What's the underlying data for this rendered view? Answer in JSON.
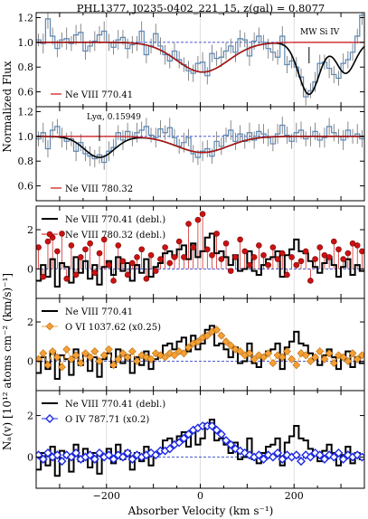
{
  "figure": {
    "title": "PHL1377, J0235-0402_221_15, z(gal) = 0.8077",
    "xlabel": "Absorber Velocity (km s⁻¹)",
    "ylabel_top": "Normalized Flux",
    "ylabel_bottom": "Nₐ(v) [10¹² atoms cm⁻² (km/s)⁻¹]"
  },
  "colors": {
    "flux_step": "#5b87b3",
    "error_bar": "#6e6e6e",
    "model_black": "#000000",
    "model_red": "#cc1111",
    "continuum": "#3344cc",
    "ne8_770": "#000000",
    "ne8_780": "#cc1111",
    "o6": "#f5a035",
    "o4": "#1d2ae0"
  },
  "chart_data": [
    {
      "type": "line",
      "panel": "flux-ne8-770",
      "legend": [
        "Ne VIII 770.41"
      ],
      "annotations": [
        "MW Si IV"
      ],
      "xlim": [
        -350,
        350
      ],
      "ylim": [
        0.48,
        1.24
      ],
      "yticks": [
        "0.6",
        "0.8",
        "1.0",
        "1.2"
      ],
      "continuum": 1.0,
      "x": [
        -345,
        -335,
        -325,
        -315,
        -305,
        -295,
        -285,
        -275,
        -265,
        -255,
        -245,
        -235,
        -225,
        -215,
        -205,
        -195,
        -185,
        -175,
        -165,
        -155,
        -145,
        -135,
        -125,
        -115,
        -105,
        -95,
        -85,
        -75,
        -65,
        -55,
        -45,
        -35,
        -25,
        -15,
        -5,
        5,
        15,
        25,
        35,
        45,
        55,
        65,
        75,
        85,
        95,
        105,
        115,
        125,
        135,
        145,
        155,
        165,
        175,
        185,
        195,
        205,
        215,
        225,
        235,
        245,
        255,
        265,
        275,
        285,
        295,
        305,
        315,
        325,
        335,
        345
      ],
      "flux": [
        1.02,
        0.99,
        1.19,
        1.05,
        0.95,
        1.02,
        1.03,
        0.99,
        1.06,
        1.08,
        0.93,
        0.97,
        1.01,
        1.06,
        1.09,
        1.0,
        0.96,
        1.02,
        1.04,
        0.95,
        0.98,
        0.99,
        1.09,
        0.9,
        0.97,
        1.07,
        0.97,
        0.9,
        0.85,
        0.93,
        0.86,
        0.82,
        0.77,
        0.75,
        0.83,
        0.84,
        0.73,
        0.91,
        0.87,
        0.88,
        0.93,
        0.97,
        0.92,
        1.03,
        1.02,
        0.89,
        1.01,
        1.05,
        1.0,
        0.95,
        0.92,
        0.88,
        1.05,
        0.82,
        0.85,
        0.8,
        0.72,
        0.56,
        0.61,
        0.68,
        0.83,
        0.84,
        0.79,
        0.74,
        0.71,
        0.83,
        0.86,
        0.92,
        1.05,
        1.22
      ],
      "error": [
        0.05,
        0.08,
        0.08,
        0.07,
        0.07,
        0.06,
        0.09,
        0.06,
        0.08,
        0.07,
        0.07,
        0.05,
        0.08,
        0.07,
        0.08,
        0.07,
        0.06,
        0.08,
        0.06,
        0.08,
        0.07,
        0.06,
        0.08,
        0.07,
        0.06,
        0.08,
        0.07,
        0.08,
        0.06,
        0.07,
        0.07,
        0.06,
        0.08,
        0.07,
        0.06,
        0.08,
        0.07,
        0.07,
        0.06,
        0.08,
        0.07,
        0.06,
        0.08,
        0.07,
        0.06,
        0.08,
        0.07,
        0.07,
        0.06,
        0.08,
        0.07,
        0.06,
        0.08,
        0.07,
        0.06,
        0.08,
        0.07,
        0.07,
        0.06,
        0.08,
        0.07,
        0.06,
        0.08,
        0.07,
        0.06,
        0.08,
        0.07,
        0.07,
        0.06,
        0.08
      ],
      "model_components": [
        {
          "center": 5,
          "depth": 0.24,
          "sigma": 55
        },
        {
          "center": 232,
          "depth": 0.42,
          "sigma": 22
        },
        {
          "center": 310,
          "depth": 0.25,
          "sigma": 20
        }
      ],
      "model_red_components": [
        {
          "center": 5,
          "depth": 0.24,
          "sigma": 55
        }
      ]
    },
    {
      "type": "line",
      "panel": "flux-ne8-780",
      "legend": [
        "Ne VIII 780.32"
      ],
      "annotations": [
        "Lyα, 0.15949"
      ],
      "xlim": [
        -350,
        350
      ],
      "ylim": [
        0.48,
        1.24
      ],
      "yticks": [
        "0.6",
        "0.8",
        "1.0",
        "1.2"
      ],
      "continuum": 1.0,
      "x": [
        -345,
        -335,
        -325,
        -315,
        -305,
        -295,
        -285,
        -275,
        -265,
        -255,
        -245,
        -235,
        -225,
        -215,
        -205,
        -195,
        -185,
        -175,
        -165,
        -155,
        -145,
        -135,
        -125,
        -115,
        -105,
        -95,
        -85,
        -75,
        -65,
        -55,
        -45,
        -35,
        -25,
        -15,
        -5,
        5,
        15,
        25,
        35,
        45,
        55,
        65,
        75,
        85,
        95,
        105,
        115,
        125,
        135,
        145,
        155,
        165,
        175,
        185,
        195,
        205,
        215,
        225,
        235,
        245,
        255,
        265,
        275,
        285,
        295,
        305,
        315,
        325,
        335,
        345
      ],
      "flux": [
        0.98,
        1.03,
        0.9,
        1.05,
        1.08,
        0.99,
        0.96,
        0.98,
        0.88,
        0.95,
        0.86,
        0.84,
        0.82,
        0.85,
        0.79,
        0.88,
        0.91,
        1.03,
        0.97,
        1.04,
        0.98,
        1.03,
        1.05,
        1.08,
        1.01,
        0.99,
        1.06,
        1.03,
        1.07,
        0.99,
        0.92,
        0.95,
        0.99,
        0.86,
        0.83,
        0.88,
        0.9,
        0.84,
        0.96,
        0.92,
        1.01,
        1.05,
        0.96,
        1.02,
        0.96,
        1.03,
        0.97,
        1.04,
        1.02,
        0.99,
        0.94,
        1.02,
        1.09,
        1.01,
        0.96,
        1.03,
        1.05,
        0.98,
        1.0,
        1.04,
        0.97,
        0.99,
        1.08,
        1.03,
        1.0,
        0.97,
        1.05,
        1.0,
        1.02,
        0.98
      ],
      "error": [
        0.06,
        0.08,
        0.07,
        0.07,
        0.06,
        0.08,
        0.07,
        0.06,
        0.08,
        0.07,
        0.06,
        0.08,
        0.07,
        0.07,
        0.06,
        0.08,
        0.07,
        0.06,
        0.08,
        0.07,
        0.06,
        0.08,
        0.07,
        0.07,
        0.06,
        0.08,
        0.07,
        0.06,
        0.08,
        0.07,
        0.06,
        0.08,
        0.07,
        0.07,
        0.06,
        0.08,
        0.07,
        0.06,
        0.08,
        0.07,
        0.06,
        0.08,
        0.07,
        0.07,
        0.06,
        0.08,
        0.07,
        0.06,
        0.08,
        0.07,
        0.06,
        0.08,
        0.07,
        0.07,
        0.06,
        0.08,
        0.07,
        0.06,
        0.08,
        0.07,
        0.06,
        0.08,
        0.07,
        0.07,
        0.06,
        0.08,
        0.07,
        0.06,
        0.08,
        0.07
      ],
      "model_components": [
        {
          "center": -215,
          "depth": 0.17,
          "sigma": 32
        },
        {
          "center": 5,
          "depth": 0.13,
          "sigma": 55
        }
      ],
      "model_red_components": [
        {
          "center": 5,
          "depth": 0.13,
          "sigma": 55
        }
      ]
    },
    {
      "type": "line",
      "panel": "na-ne8-770-780",
      "legend": [
        "Ne VIII 770.41 (debl.)",
        "Ne VIII 780.32 (debl.)"
      ],
      "xlim": [
        -350,
        350
      ],
      "ylim": [
        -1.5,
        3.2
      ],
      "yticks": [
        "0",
        "2"
      ],
      "x": [
        -345,
        -335,
        -325,
        -315,
        -305,
        -295,
        -285,
        -275,
        -265,
        -255,
        -245,
        -235,
        -225,
        -215,
        -205,
        -195,
        -185,
        -175,
        -165,
        -155,
        -145,
        -135,
        -125,
        -115,
        -105,
        -95,
        -85,
        -75,
        -65,
        -55,
        -45,
        -35,
        -25,
        -15,
        -5,
        5,
        15,
        25,
        35,
        45,
        55,
        65,
        75,
        85,
        95,
        105,
        115,
        125,
        135,
        145,
        155,
        165,
        175,
        185,
        195,
        205,
        215,
        225,
        235,
        245,
        255,
        265,
        275,
        285,
        295,
        305,
        315,
        325,
        335,
        345
      ],
      "series": [
        {
          "name": "Ne VIII 770.41 (debl.)",
          "values": [
            -0.6,
            0.2,
            -0.4,
            0.5,
            -0.9,
            0.3,
            0.1,
            -0.7,
            0.6,
            -0.2,
            0.4,
            -0.5,
            0.2,
            -0.8,
            0.1,
            0.4,
            -0.3,
            0.6,
            -0.1,
            0.3,
            -0.6,
            0.2,
            -0.2,
            0.5,
            -0.4,
            0.1,
            0.3,
            0.8,
            0.9,
            0.6,
            1.0,
            1.2,
            0.5,
            1.3,
            0.6,
            0.9,
            1.6,
            1.8,
            0.8,
            0.9,
            0.6,
            0.2,
            0.7,
            -0.1,
            0.0,
            0.9,
            -0.1,
            -0.3,
            0.2,
            0.5,
            0.6,
            0.9,
            -0.4,
            0.7,
            1.0,
            1.5,
            0.9,
            0.8,
            0.4,
            0.1,
            -0.2,
            0.3,
            0.6,
            0.2,
            -0.4,
            0.1,
            0.5,
            -0.3,
            0.2,
            -0.1
          ]
        },
        {
          "name": "Ne VIII 780.32 (debl.)",
          "values": [
            1.1,
            -0.4,
            1.4,
            1.6,
            0.9,
            1.8,
            -0.5,
            1.2,
            -0.3,
            0.6,
            1.0,
            1.3,
            -0.2,
            0.8,
            1.5,
            0.2,
            -0.6,
            1.2,
            0.4,
            -0.3,
            0.3,
            0.6,
            1.0,
            -0.5,
            0.7,
            -0.1,
            0.5,
            1.1,
            0.3,
            0.6,
            1.4,
            0.6,
            2.3,
            1.1,
            2.5,
            2.8,
            1.0,
            0.7,
            1.8,
            0.5,
            1.3,
            -0.1,
            0.6,
            1.5,
            0.9,
            0.2,
            0.6,
            1.2,
            0.7,
            0.2,
            1.1,
            0.5,
            0.8,
            -0.3,
            0.6,
            0.2,
            0.4,
            0.9,
            -0.6,
            0.5,
            1.1,
            0.7,
            0.6,
            1.4,
            1.0,
            0.5,
            0.8,
            1.3,
            1.2,
            0.9
          ]
        }
      ]
    },
    {
      "type": "line",
      "panel": "na-ne8-o6",
      "legend": [
        "Ne VIII 770.41",
        "O VI 1037.62 (x0.25)"
      ],
      "xlim": [
        -350,
        350
      ],
      "ylim": [
        -1.5,
        3.2
      ],
      "yticks": [
        "0",
        "2"
      ],
      "x": [
        -345,
        -335,
        -325,
        -315,
        -305,
        -295,
        -285,
        -275,
        -265,
        -255,
        -245,
        -235,
        -225,
        -215,
        -205,
        -195,
        -185,
        -175,
        -165,
        -155,
        -145,
        -135,
        -125,
        -115,
        -105,
        -95,
        -85,
        -75,
        -65,
        -55,
        -45,
        -35,
        -25,
        -15,
        -5,
        5,
        15,
        25,
        35,
        45,
        55,
        65,
        75,
        85,
        95,
        105,
        115,
        125,
        135,
        145,
        155,
        165,
        175,
        185,
        195,
        205,
        215,
        225,
        235,
        245,
        255,
        265,
        275,
        285,
        295,
        305,
        315,
        325,
        335,
        345
      ],
      "series": [
        {
          "name": "Ne VIII 770.41",
          "values": [
            -0.6,
            0.2,
            -0.4,
            0.5,
            -0.9,
            0.3,
            0.1,
            -0.7,
            0.6,
            -0.2,
            0.4,
            -0.5,
            0.2,
            -0.8,
            0.1,
            0.4,
            -0.3,
            0.6,
            -0.1,
            0.3,
            -0.6,
            0.2,
            -0.2,
            0.5,
            -0.4,
            0.1,
            0.3,
            0.8,
            0.9,
            0.6,
            1.0,
            1.2,
            0.5,
            1.3,
            0.6,
            0.9,
            1.6,
            1.8,
            0.8,
            0.9,
            0.6,
            0.2,
            0.7,
            -0.1,
            0.0,
            0.9,
            -0.1,
            -0.3,
            0.2,
            0.5,
            0.6,
            0.9,
            -0.4,
            0.7,
            1.0,
            1.5,
            0.9,
            0.8,
            0.4,
            0.1,
            -0.2,
            0.3,
            0.6,
            0.2,
            -0.4,
            0.1,
            0.5,
            -0.3,
            0.2,
            -0.1
          ]
        },
        {
          "name": "O VI 1037.62 (x0.25)",
          "values": [
            0.1,
            0.4,
            -0.2,
            0.5,
            0.2,
            -0.3,
            0.6,
            0.1,
            0.3,
            -0.1,
            0.4,
            0.2,
            0.5,
            0.0,
            0.3,
            0.6,
            -0.2,
            0.1,
            0.4,
            0.2,
            0.5,
            0.0,
            0.3,
            0.2,
            0.1,
            0.4,
            0.3,
            0.2,
            0.4,
            0.3,
            0.5,
            0.4,
            0.7,
            0.9,
            1.0,
            1.2,
            1.3,
            1.5,
            1.6,
            1.3,
            1.0,
            0.8,
            0.6,
            0.5,
            0.3,
            0.4,
            0.1,
            0.3,
            0.2,
            0.4,
            -0.1,
            0.3,
            0.2,
            0.5,
            0.1,
            -0.2,
            0.4,
            0.3,
            0.0,
            0.2,
            0.5,
            0.1,
            0.4,
            -0.1,
            0.3,
            0.2,
            0.0,
            0.4,
            0.1,
            0.3
          ]
        }
      ]
    },
    {
      "type": "line",
      "panel": "na-ne8-o4",
      "legend": [
        "Ne VIII 770.41 (debl.)",
        "O IV 787.71 (x0.2)"
      ],
      "xlim": [
        -350,
        350
      ],
      "ylim": [
        -1.5,
        3.2
      ],
      "yticks": [
        "0",
        "2"
      ],
      "x": [
        -345,
        -335,
        -325,
        -315,
        -305,
        -295,
        -285,
        -275,
        -265,
        -255,
        -245,
        -235,
        -225,
        -215,
        -205,
        -195,
        -185,
        -175,
        -165,
        -155,
        -145,
        -135,
        -125,
        -115,
        -105,
        -95,
        -85,
        -75,
        -65,
        -55,
        -45,
        -35,
        -25,
        -15,
        -5,
        5,
        15,
        25,
        35,
        45,
        55,
        65,
        75,
        85,
        95,
        105,
        115,
        125,
        135,
        145,
        155,
        165,
        175,
        185,
        195,
        205,
        215,
        225,
        235,
        245,
        255,
        265,
        275,
        285,
        295,
        305,
        315,
        325,
        335,
        345
      ],
      "series": [
        {
          "name": "Ne VIII 770.41 (debl.)",
          "values": [
            -0.6,
            0.2,
            -0.4,
            0.5,
            -0.9,
            0.3,
            0.1,
            -0.7,
            0.6,
            -0.2,
            0.4,
            -0.5,
            0.2,
            -0.8,
            0.1,
            0.4,
            -0.3,
            0.6,
            -0.1,
            0.3,
            -0.6,
            0.2,
            -0.2,
            0.5,
            -0.4,
            0.1,
            0.3,
            0.8,
            0.9,
            0.6,
            1.0,
            1.2,
            0.5,
            1.3,
            0.6,
            0.9,
            1.6,
            1.8,
            0.8,
            0.9,
            0.6,
            0.2,
            0.7,
            -0.1,
            0.0,
            0.9,
            -0.1,
            -0.3,
            0.2,
            0.5,
            0.6,
            0.9,
            -0.4,
            0.7,
            1.0,
            1.5,
            0.9,
            0.8,
            0.4,
            0.1,
            -0.2,
            0.3,
            0.6,
            0.2,
            -0.4,
            0.1,
            0.5,
            -0.3,
            0.2,
            -0.1
          ]
        },
        {
          "name": "O IV 787.71 (x0.2)",
          "values": [
            0.1,
            -0.1,
            0.2,
            0.0,
            0.1,
            -0.2,
            0.1,
            0.0,
            0.2,
            -0.1,
            0.0,
            0.1,
            -0.1,
            0.2,
            0.0,
            0.1,
            -0.1,
            0.1,
            0.0,
            0.2,
            -0.1,
            0.1,
            0.0,
            0.1,
            0.2,
            0.1,
            0.3,
            0.3,
            0.4,
            0.6,
            0.7,
            0.9,
            1.1,
            1.3,
            1.4,
            1.5,
            1.5,
            1.5,
            1.3,
            1.1,
            0.8,
            0.6,
            0.4,
            0.3,
            0.2,
            0.1,
            0.0,
            0.1,
            -0.1,
            0.1,
            0.0,
            0.2,
            -0.1,
            0.1,
            0.0,
            0.1,
            -0.2,
            0.1,
            0.0,
            0.2,
            0.1,
            -0.1,
            0.1,
            0.0,
            0.2,
            -0.1,
            0.1,
            0.0,
            0.1,
            0.0
          ]
        }
      ]
    }
  ],
  "xaxis": {
    "ticks": [
      -200,
      0,
      200
    ],
    "tick_labels": [
      "−200",
      "0",
      "200"
    ]
  }
}
